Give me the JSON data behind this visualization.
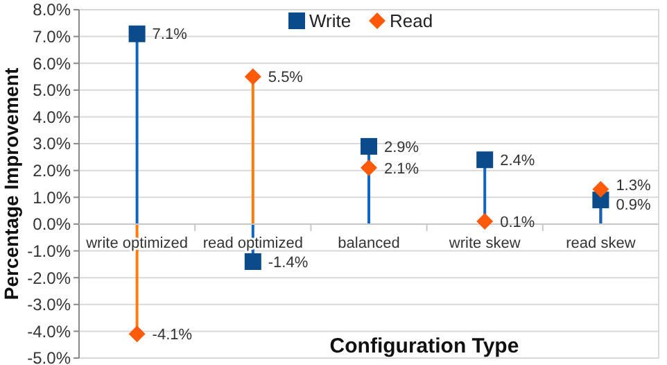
{
  "chart_data": {
    "type": "lollipop",
    "xlabel": "Configuration Type",
    "ylabel": "Percentage Improvement",
    "categories": [
      "write optimized",
      "read optimized",
      "balanced",
      "write skew",
      "read skew"
    ],
    "series": [
      {
        "name": "Write",
        "color": "#0b4a8b",
        "marker": "square",
        "values": [
          7.1,
          -1.4,
          2.9,
          2.4,
          0.9
        ],
        "value_labels": [
          "7.1%",
          "-1.4%",
          "2.9%",
          "2.4%",
          "0.9%"
        ]
      },
      {
        "name": "Read",
        "color": "#ff5a0a",
        "marker": "diamond",
        "values": [
          -4.1,
          5.5,
          2.1,
          0.1,
          1.3
        ],
        "value_labels": [
          "-4.1%",
          "5.5%",
          "2.1%",
          "0.1%",
          "1.3%"
        ]
      }
    ],
    "ylim": [
      -5,
      8
    ],
    "yticks": [
      {
        "value": -5,
        "label": "-5.0%"
      },
      {
        "value": -4,
        "label": "-4.0%"
      },
      {
        "value": -3,
        "label": "-3.0%"
      },
      {
        "value": -2,
        "label": "-2.0%"
      },
      {
        "value": -1,
        "label": "-1.0%"
      },
      {
        "value": 0,
        "label": "0.0%"
      },
      {
        "value": 1,
        "label": "1.0%"
      },
      {
        "value": 2,
        "label": "2.0%"
      },
      {
        "value": 3,
        "label": "3.0%"
      },
      {
        "value": 4,
        "label": "4.0%"
      },
      {
        "value": 5,
        "label": "5.0%"
      },
      {
        "value": 6,
        "label": "6.0%"
      },
      {
        "value": 7,
        "label": "7.0%"
      },
      {
        "value": 8,
        "label": "8.0%"
      }
    ],
    "grid": "y",
    "legend": "top"
  }
}
